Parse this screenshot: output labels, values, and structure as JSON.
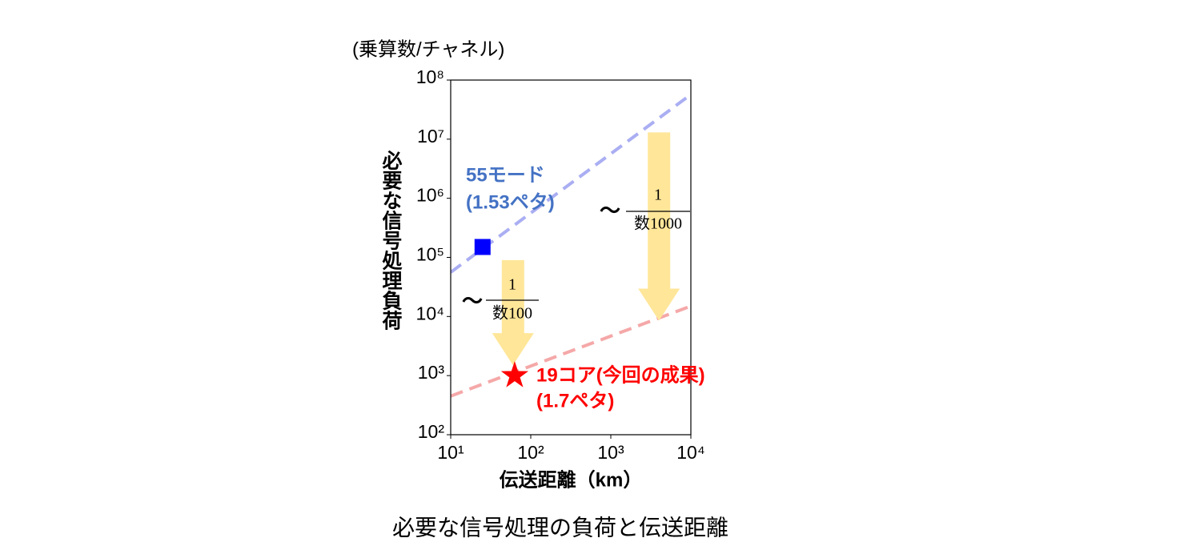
{
  "chart_data": {
    "type": "scatter",
    "unit_label": "(乗算数/チャネル)",
    "ylabel": "必要な信号処理負荷",
    "xlabel": "伝送距離（km）",
    "caption": "必要な信号処理の負荷と伝送距離",
    "xscale": "log",
    "yscale": "log",
    "xlim": [
      10,
      10000
    ],
    "ylim": [
      100,
      100000000
    ],
    "xticks": [
      {
        "value": 10,
        "label": "10¹"
      },
      {
        "value": 100,
        "label": "10²"
      },
      {
        "value": 1000,
        "label": "10³"
      },
      {
        "value": 10000,
        "label": "10⁴"
      }
    ],
    "yticks": [
      {
        "value": 100,
        "label": "10²"
      },
      {
        "value": 1000,
        "label": "10³"
      },
      {
        "value": 10000,
        "label": "10⁴"
      },
      {
        "value": 100000,
        "label": "10⁵"
      },
      {
        "value": 1000000,
        "label": "10⁶"
      },
      {
        "value": 10000000,
        "label": "10⁷"
      },
      {
        "value": 100000000,
        "label": "10⁸"
      }
    ],
    "lines": [
      {
        "x": [
          10,
          10000
        ],
        "y": [
          56000,
          57000000
        ],
        "color": "#aaaef2"
      },
      {
        "x": [
          10,
          10000
        ],
        "y": [
          450,
          15000
        ],
        "color": "#f5a8a8"
      }
    ],
    "points": [
      {
        "x": 25,
        "y": 150000,
        "marker": "square",
        "color": "#0000ff",
        "labels": [
          "55モード",
          "(1.53ペタ)"
        ],
        "label_color": "#4472c4"
      },
      {
        "x": 63,
        "y": 1000,
        "marker": "star",
        "color": "#ff0000",
        "labels": [
          "19コア(今回の成果)",
          "(1.7ペタ)"
        ],
        "label_color": "#ff0000"
      }
    ],
    "arrows": [
      {
        "x": 60,
        "y_from": 90000,
        "y_to": 1500,
        "color": "#ffe699",
        "approx": "～",
        "numerator": "1",
        "denominator": "数100"
      },
      {
        "x": 4000,
        "y_from": 13000000,
        "y_to": 8500,
        "color": "#ffe699",
        "approx": "～",
        "numerator": "1",
        "denominator": "数1000"
      }
    ]
  }
}
